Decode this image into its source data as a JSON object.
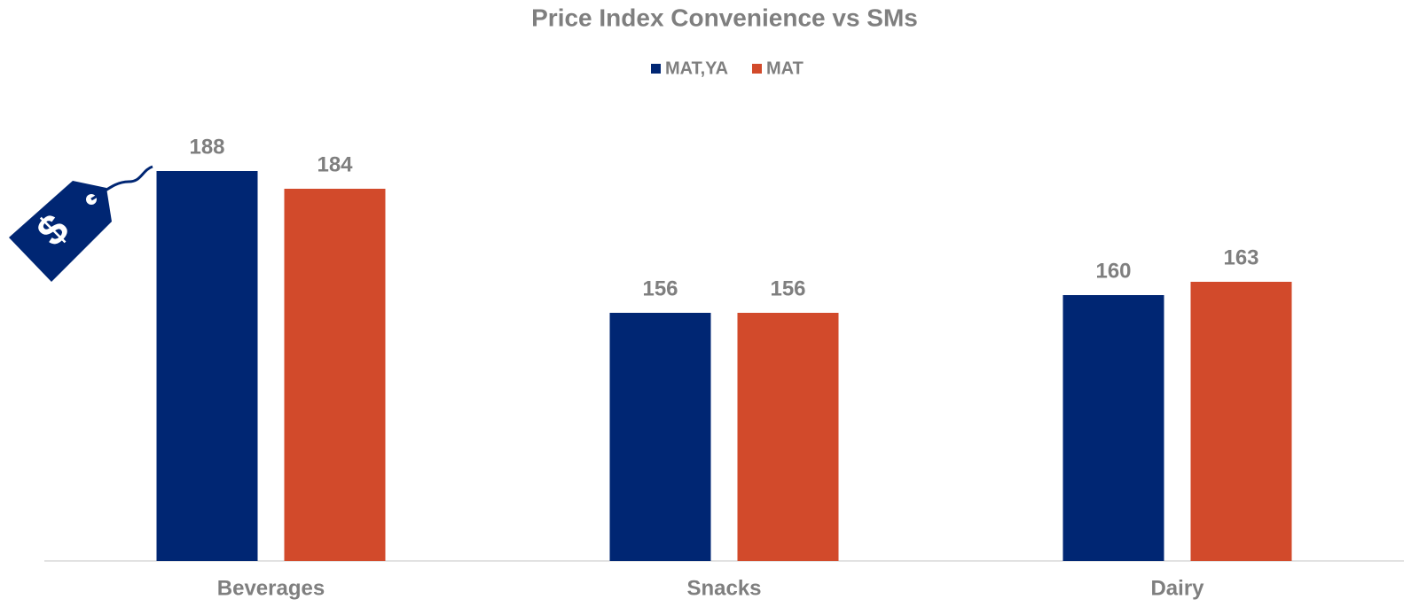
{
  "chart_data": {
    "type": "bar",
    "title": "Price Index Convenience vs SMs",
    "categories": [
      "Beverages",
      "Snacks",
      "Dairy"
    ],
    "series": [
      {
        "name": "MAT,YA",
        "color": "#002673",
        "values": [
          188,
          156,
          160
        ]
      },
      {
        "name": "MAT",
        "color": "#d24a2b",
        "values": [
          184,
          156,
          163
        ]
      }
    ],
    "ylim": [
      100,
      200
    ],
    "grid": false
  }
}
